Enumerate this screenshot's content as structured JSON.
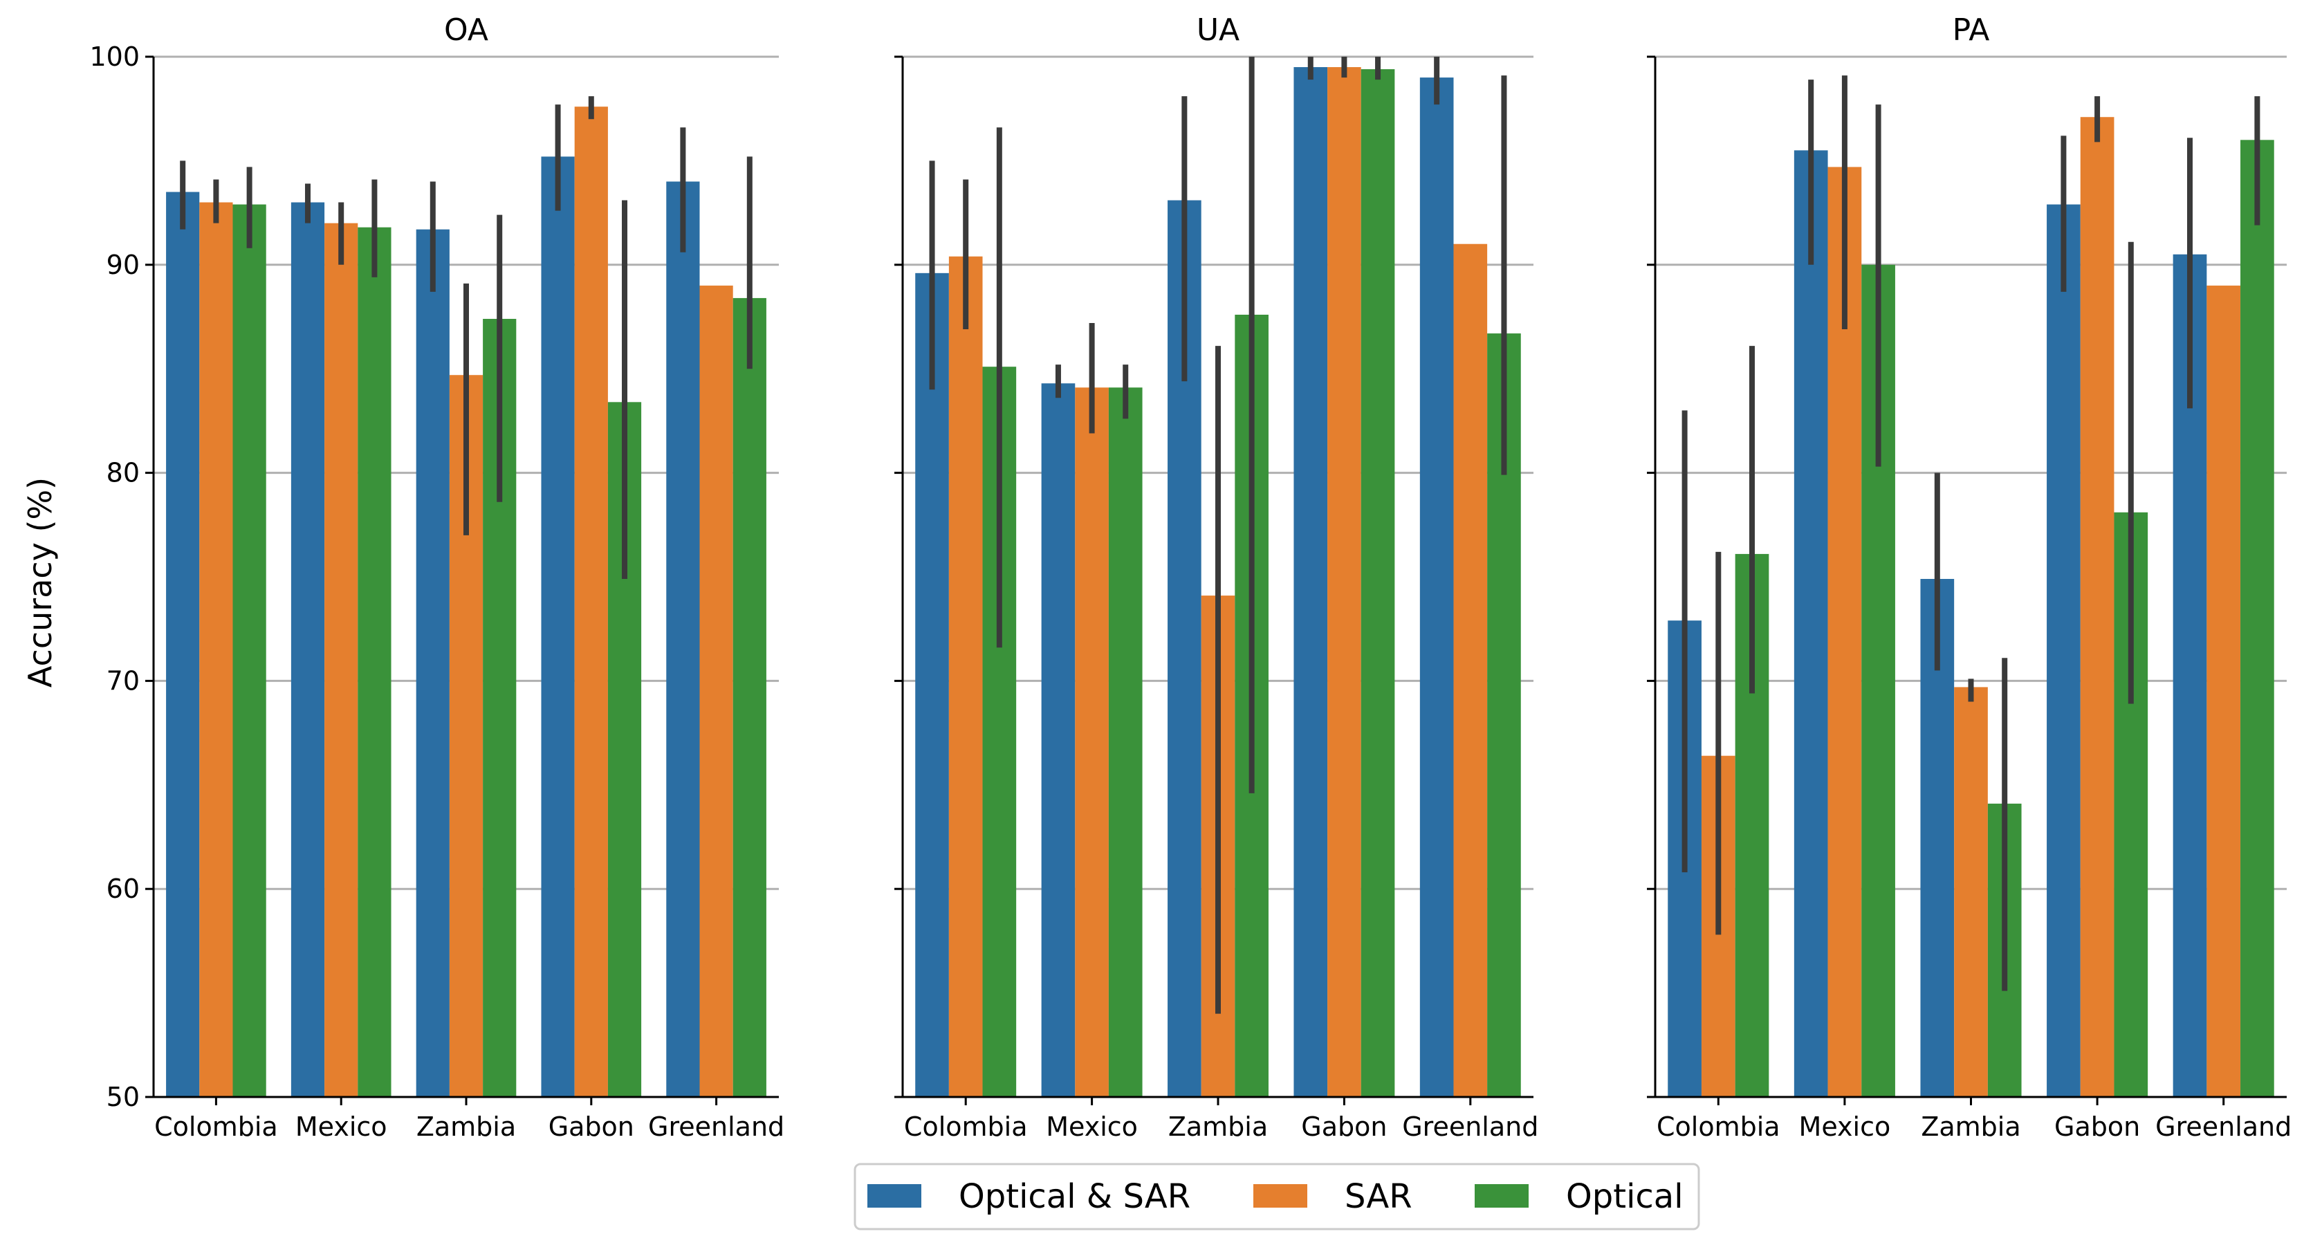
{
  "chart_data": {
    "type": "bar",
    "ylabel": "Accuracy (%)",
    "ylim": [
      50,
      100
    ],
    "yticks": [
      50,
      60,
      70,
      80,
      90,
      100
    ],
    "grid": "horizontal",
    "legend_position": "bottom-center",
    "categories": [
      "Colombia",
      "Mexico",
      "Zambia",
      "Gabon",
      "Greenland"
    ],
    "series_styles": [
      {
        "name": "Optical & SAR",
        "color": "#2b6ea3"
      },
      {
        "name": "SAR",
        "color": "#e57f2e"
      },
      {
        "name": "Optical",
        "color": "#3a923a"
      }
    ],
    "panels": [
      {
        "title": "OA",
        "series": [
          {
            "name": "Optical & SAR",
            "values": [
              93.5,
              93.0,
              91.7,
              95.2,
              94.0
            ],
            "err_low": [
              91.7,
              92.0,
              88.7,
              92.6,
              90.6
            ],
            "err_high": [
              95.0,
              93.9,
              94.0,
              97.7,
              96.6
            ]
          },
          {
            "name": "SAR",
            "values": [
              93.0,
              92.0,
              84.7,
              97.6,
              89.0
            ],
            "err_low": [
              92.0,
              90.0,
              77.0,
              97.0,
              89.0
            ],
            "err_high": [
              94.1,
              93.0,
              89.1,
              98.1,
              89.0
            ]
          },
          {
            "name": "Optical",
            "values": [
              92.9,
              91.8,
              87.4,
              83.4,
              88.4
            ],
            "err_low": [
              90.8,
              89.4,
              78.6,
              74.9,
              85.0
            ],
            "err_high": [
              94.7,
              94.1,
              92.4,
              93.1,
              95.2
            ]
          }
        ]
      },
      {
        "title": "UA",
        "series": [
          {
            "name": "Optical & SAR",
            "values": [
              89.6,
              84.3,
              93.1,
              99.5,
              99.0
            ],
            "err_low": [
              84.0,
              83.6,
              84.4,
              98.9,
              97.7
            ],
            "err_high": [
              95.0,
              85.2,
              98.1,
              100.0,
              100.0
            ]
          },
          {
            "name": "SAR",
            "values": [
              90.4,
              84.1,
              74.1,
              99.5,
              91.0
            ],
            "err_low": [
              86.9,
              81.9,
              54.0,
              99.0,
              91.0
            ],
            "err_high": [
              94.1,
              87.2,
              86.1,
              100.0,
              91.0
            ]
          },
          {
            "name": "Optical",
            "values": [
              85.1,
              84.1,
              87.6,
              99.4,
              86.7
            ],
            "err_low": [
              71.6,
              82.6,
              64.6,
              98.9,
              79.9
            ],
            "err_high": [
              96.6,
              85.2,
              100.0,
              100.0,
              99.1
            ]
          }
        ]
      },
      {
        "title": "PA",
        "series": [
          {
            "name": "Optical & SAR",
            "values": [
              72.9,
              95.5,
              74.9,
              92.9,
              90.5
            ],
            "err_low": [
              60.8,
              90.0,
              70.5,
              88.7,
              83.1
            ],
            "err_high": [
              83.0,
              98.9,
              80.0,
              96.2,
              96.1
            ]
          },
          {
            "name": "SAR",
            "values": [
              66.4,
              94.7,
              69.7,
              97.1,
              89.0
            ],
            "err_low": [
              57.8,
              86.9,
              69.0,
              95.9,
              89.0
            ],
            "err_high": [
              76.2,
              99.1,
              70.1,
              98.1,
              89.0
            ]
          },
          {
            "name": "Optical",
            "values": [
              76.1,
              90.0,
              64.1,
              78.1,
              96.0
            ],
            "err_low": [
              69.4,
              80.3,
              55.1,
              68.9,
              91.9
            ],
            "err_high": [
              86.1,
              97.7,
              71.1,
              91.1,
              98.1
            ]
          }
        ]
      }
    ]
  }
}
